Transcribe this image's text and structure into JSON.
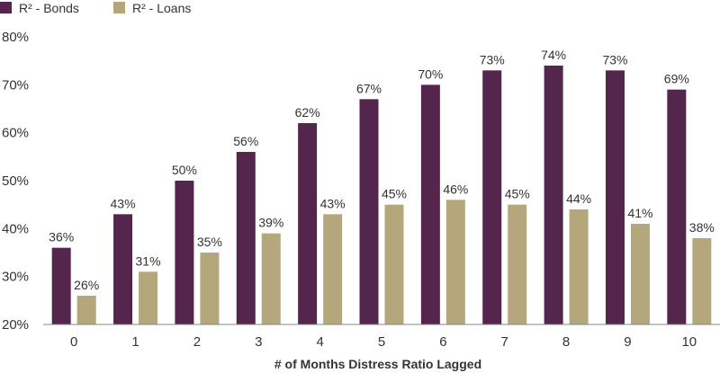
{
  "chart_data": {
    "type": "bar",
    "xlabel": "# of Months Distress Ratio Lagged",
    "ylabel": "",
    "categories": [
      "0",
      "1",
      "2",
      "3",
      "4",
      "5",
      "6",
      "7",
      "8",
      "9",
      "10"
    ],
    "ylim": [
      20,
      80
    ],
    "yticks": [
      "20%",
      "30%",
      "40%",
      "50%",
      "60%",
      "70%",
      "80%"
    ],
    "ytick_values": [
      20,
      30,
      40,
      50,
      60,
      70,
      80
    ],
    "grid": false,
    "legend_position": "top-left",
    "series": [
      {
        "name": "R² - Bonds",
        "color": "#54264d",
        "values": [
          36,
          43,
          50,
          56,
          62,
          67,
          70,
          73,
          74,
          73,
          69
        ],
        "labels": [
          "36%",
          "43%",
          "50%",
          "56%",
          "62%",
          "67%",
          "70%",
          "73%",
          "74%",
          "73%",
          "69%"
        ]
      },
      {
        "name": "R² - Loans",
        "color": "#b5a77c",
        "values": [
          26,
          31,
          35,
          39,
          43,
          45,
          46,
          45,
          44,
          41,
          38
        ],
        "labels": [
          "26%",
          "31%",
          "35%",
          "39%",
          "43%",
          "45%",
          "46%",
          "45%",
          "44%",
          "41%",
          "38%"
        ]
      }
    ]
  }
}
